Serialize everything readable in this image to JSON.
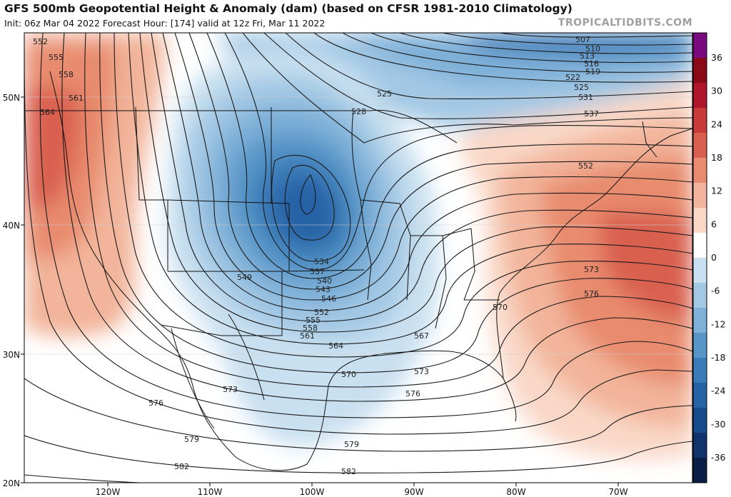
{
  "header": {
    "title": "GFS 500mb Geopotential Height & Anomaly (dam) (based on CFSR 1981-2010 Climatology)",
    "subtitle": "Init: 06z Mar 04 2022   Forecast Hour: [174]   valid at 12z Fri, Mar 11 2022",
    "brand": "TROPICALTIDBITS.COM"
  },
  "axes": {
    "lat_labels": [
      "50N",
      "40N",
      "30N",
      "20N"
    ],
    "lon_labels": [
      "120W",
      "110W",
      "100W",
      "90W",
      "80W",
      "70W"
    ]
  },
  "colorbar": {
    "ticks": [
      "36",
      "30",
      "24",
      "18",
      "12",
      "6",
      "0",
      "-6",
      "-12",
      "-18",
      "-24",
      "-30",
      "-36"
    ],
    "colors": [
      "#7a0a80",
      "#8b0a1a",
      "#b0162a",
      "#c83a3a",
      "#d9604f",
      "#e88b6e",
      "#f2b49a",
      "#f9d8c8",
      "#ffffff",
      "#c9e0f0",
      "#a3c8e4",
      "#7eb0d8",
      "#5896c8",
      "#3a7cb8",
      "#2562a6",
      "#174a8c",
      "#0f336a",
      "#0a1e48"
    ]
  },
  "height_contour_labels": [
    {
      "text": "507"
    },
    {
      "text": "510"
    },
    {
      "text": "513"
    },
    {
      "text": "516"
    },
    {
      "text": "519"
    },
    {
      "text": "522"
    },
    {
      "text": "525"
    },
    {
      "text": "525"
    },
    {
      "text": "528"
    },
    {
      "text": "531"
    },
    {
      "text": "537"
    },
    {
      "text": "534"
    },
    {
      "text": "537"
    },
    {
      "text": "540"
    },
    {
      "text": "543"
    },
    {
      "text": "546"
    },
    {
      "text": "549"
    },
    {
      "text": "552"
    },
    {
      "text": "552"
    },
    {
      "text": "552"
    },
    {
      "text": "555"
    },
    {
      "text": "555"
    },
    {
      "text": "558"
    },
    {
      "text": "558"
    },
    {
      "text": "561"
    },
    {
      "text": "561"
    },
    {
      "text": "564"
    },
    {
      "text": "564"
    },
    {
      "text": "567"
    },
    {
      "text": "570"
    },
    {
      "text": "570"
    },
    {
      "text": "573"
    },
    {
      "text": "573"
    },
    {
      "text": "573"
    },
    {
      "text": "576"
    },
    {
      "text": "576"
    },
    {
      "text": "576"
    },
    {
      "text": "579"
    },
    {
      "text": "579"
    },
    {
      "text": "582"
    },
    {
      "text": "582"
    }
  ]
}
